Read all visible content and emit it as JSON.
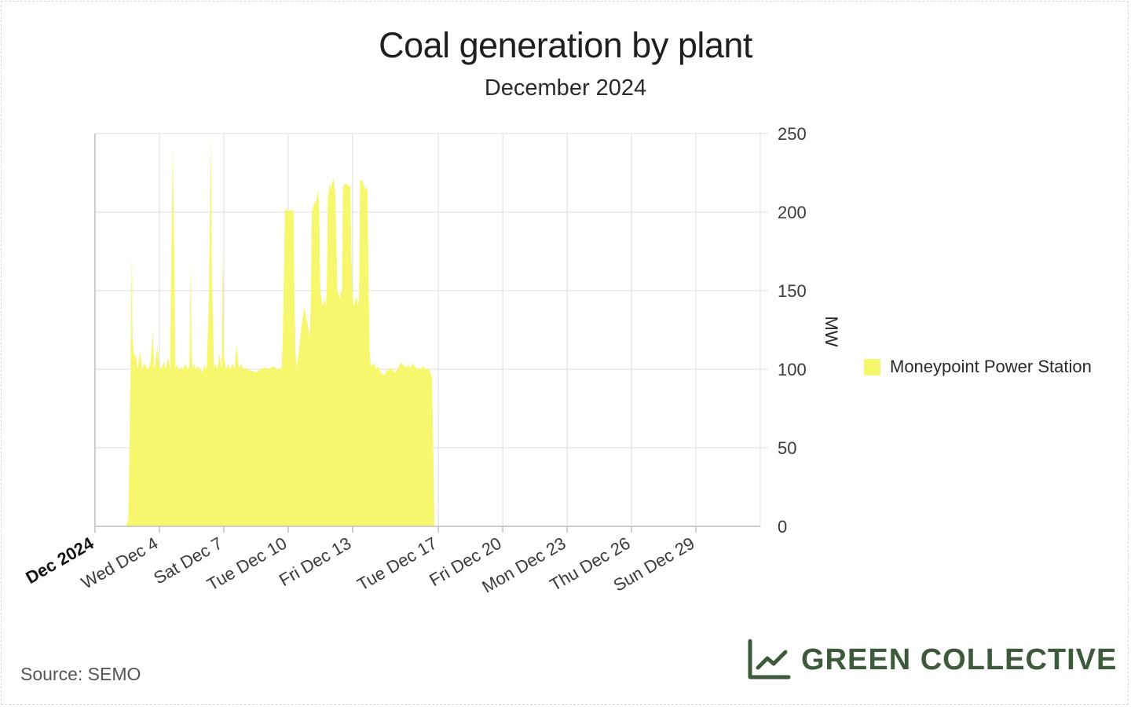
{
  "chart_data": {
    "type": "area",
    "title": "Coal generation by plant",
    "subtitle": "December 2024",
    "ylabel": "MW",
    "ylim": [
      0,
      250
    ],
    "yticks": [
      0,
      50,
      100,
      150,
      200,
      250
    ],
    "xlim_days": [
      1,
      32
    ],
    "xticks": [
      {
        "day": 1,
        "label": "Dec 2024",
        "bold": true
      },
      {
        "day": 4,
        "label": "Wed Dec 4"
      },
      {
        "day": 7,
        "label": "Sat Dec 7"
      },
      {
        "day": 10,
        "label": "Tue Dec 10"
      },
      {
        "day": 13,
        "label": "Fri Dec 13"
      },
      {
        "day": 17,
        "label": "Tue Dec 17"
      },
      {
        "day": 20,
        "label": "Fri Dec 20"
      },
      {
        "day": 23,
        "label": "Mon Dec 23"
      },
      {
        "day": 26,
        "label": "Thu Dec 26"
      },
      {
        "day": 29,
        "label": "Sun Dec 29"
      }
    ],
    "grid": true,
    "legend_position": "right",
    "series": [
      {
        "name": "Moneypoint Power Station",
        "color": "#f7f76e",
        "points": [
          [
            2.45,
            0
          ],
          [
            2.55,
            5
          ],
          [
            2.6,
            45
          ],
          [
            2.65,
            100
          ],
          [
            2.7,
            160
          ],
          [
            2.72,
            175
          ],
          [
            2.75,
            120
          ],
          [
            2.8,
            110
          ],
          [
            2.9,
            108
          ],
          [
            3.0,
            100
          ],
          [
            3.1,
            112
          ],
          [
            3.2,
            100
          ],
          [
            3.3,
            104
          ],
          [
            3.4,
            101
          ],
          [
            3.5,
            100
          ],
          [
            3.6,
            106
          ],
          [
            3.7,
            125
          ],
          [
            3.75,
            100
          ],
          [
            3.8,
            103
          ],
          [
            3.9,
            115
          ],
          [
            4.0,
            102
          ],
          [
            4.1,
            100
          ],
          [
            4.2,
            105
          ],
          [
            4.3,
            100
          ],
          [
            4.4,
            108
          ],
          [
            4.5,
            100
          ],
          [
            4.55,
            170
          ],
          [
            4.62,
            242
          ],
          [
            4.7,
            160
          ],
          [
            4.75,
            100
          ],
          [
            4.8,
            103
          ],
          [
            4.9,
            100
          ],
          [
            5.0,
            101
          ],
          [
            5.1,
            100
          ],
          [
            5.2,
            104
          ],
          [
            5.3,
            100
          ],
          [
            5.4,
            102
          ],
          [
            5.45,
            168
          ],
          [
            5.5,
            110
          ],
          [
            5.55,
            100
          ],
          [
            5.6,
            104
          ],
          [
            5.7,
            100
          ],
          [
            5.8,
            102
          ],
          [
            5.9,
            100
          ],
          [
            6.0,
            98
          ],
          [
            6.1,
            103
          ],
          [
            6.2,
            100
          ],
          [
            6.3,
            140
          ],
          [
            6.4,
            248
          ],
          [
            6.45,
            160
          ],
          [
            6.5,
            130
          ],
          [
            6.55,
            100
          ],
          [
            6.6,
            104
          ],
          [
            6.7,
            100
          ],
          [
            6.8,
            110
          ],
          [
            6.9,
            100
          ],
          [
            6.95,
            176
          ],
          [
            7.0,
            110
          ],
          [
            7.1,
            100
          ],
          [
            7.2,
            103
          ],
          [
            7.3,
            100
          ],
          [
            7.4,
            104
          ],
          [
            7.5,
            100
          ],
          [
            7.6,
            116
          ],
          [
            7.7,
            100
          ],
          [
            7.8,
            104
          ],
          [
            7.9,
            100
          ],
          [
            8.0,
            101
          ],
          [
            8.1,
            100
          ],
          [
            8.3,
            99
          ],
          [
            8.5,
            98
          ],
          [
            8.7,
            100
          ],
          [
            8.9,
            101
          ],
          [
            9.1,
            100
          ],
          [
            9.3,
            102
          ],
          [
            9.5,
            100
          ],
          [
            9.7,
            101
          ],
          [
            9.75,
            120
          ],
          [
            9.8,
            160
          ],
          [
            9.85,
            203
          ],
          [
            10.0,
            200
          ],
          [
            10.15,
            202
          ],
          [
            10.25,
            200
          ],
          [
            10.3,
            140
          ],
          [
            10.35,
            110
          ],
          [
            10.4,
            100
          ],
          [
            10.5,
            112
          ],
          [
            10.6,
            125
          ],
          [
            10.7,
            135
          ],
          [
            10.75,
            140
          ],
          [
            10.8,
            135
          ],
          [
            10.9,
            130
          ],
          [
            11.0,
            120
          ],
          [
            11.05,
            140
          ],
          [
            11.1,
            200
          ],
          [
            11.2,
            205
          ],
          [
            11.3,
            207
          ],
          [
            11.4,
            214
          ],
          [
            11.45,
            200
          ],
          [
            11.5,
            150
          ],
          [
            11.6,
            140
          ],
          [
            11.7,
            145
          ],
          [
            11.75,
            140
          ],
          [
            11.8,
            150
          ],
          [
            11.85,
            210
          ],
          [
            11.95,
            218
          ],
          [
            12.0,
            215
          ],
          [
            12.1,
            222
          ],
          [
            12.2,
            212
          ],
          [
            12.25,
            180
          ],
          [
            12.3,
            150
          ],
          [
            12.4,
            145
          ],
          [
            12.45,
            150
          ],
          [
            12.5,
            148
          ],
          [
            12.55,
            215
          ],
          [
            12.6,
            218
          ],
          [
            12.7,
            218
          ],
          [
            12.8,
            217
          ],
          [
            12.9,
            216
          ],
          [
            12.95,
            170
          ],
          [
            13.0,
            150
          ],
          [
            13.05,
            140
          ],
          [
            13.1,
            142
          ],
          [
            13.15,
            145
          ],
          [
            13.2,
            146
          ],
          [
            13.25,
            140
          ],
          [
            13.3,
            145
          ],
          [
            13.35,
            220
          ],
          [
            13.45,
            220
          ],
          [
            13.55,
            216
          ],
          [
            13.7,
            214
          ],
          [
            13.75,
            150
          ],
          [
            13.8,
            110
          ],
          [
            13.85,
            103
          ],
          [
            13.9,
            102
          ],
          [
            14.0,
            104
          ],
          [
            14.1,
            100
          ],
          [
            14.2,
            102
          ],
          [
            14.3,
            98
          ],
          [
            14.4,
            97
          ],
          [
            14.5,
            96
          ],
          [
            14.6,
            100
          ],
          [
            14.7,
            99
          ],
          [
            14.8,
            101
          ],
          [
            14.9,
            99
          ],
          [
            15.0,
            98
          ],
          [
            15.1,
            100
          ],
          [
            15.2,
            103
          ],
          [
            15.3,
            104
          ],
          [
            15.4,
            102
          ],
          [
            15.5,
            101
          ],
          [
            15.6,
            103
          ],
          [
            15.7,
            101
          ],
          [
            15.8,
            104
          ],
          [
            15.9,
            102
          ],
          [
            16.0,
            100
          ],
          [
            16.1,
            101
          ],
          [
            16.2,
            100
          ],
          [
            16.3,
            102
          ],
          [
            16.4,
            100
          ],
          [
            16.5,
            100
          ],
          [
            16.6,
            99
          ],
          [
            16.7,
            95
          ],
          [
            16.75,
            60
          ],
          [
            16.8,
            20
          ],
          [
            16.82,
            0
          ]
        ]
      }
    ],
    "source": "Source: SEMO"
  },
  "brand": {
    "name": "GREEN COLLECTIVE",
    "color": "#3d5a3a"
  },
  "icons": {
    "brand_logo": "line-chart-icon",
    "legend_swatch": "square"
  }
}
